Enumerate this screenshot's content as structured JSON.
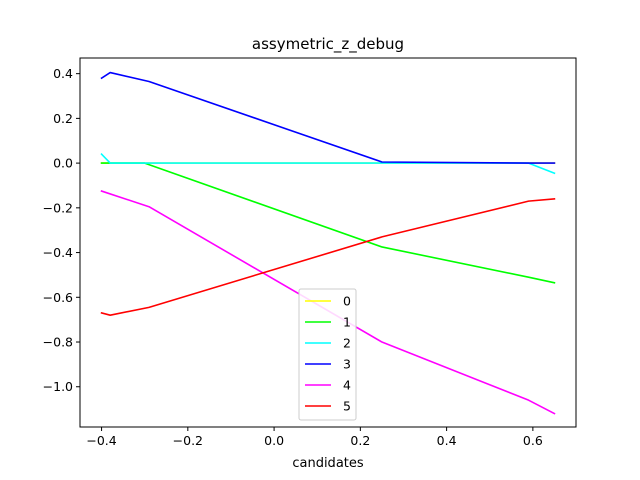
{
  "chart_data": {
    "type": "line",
    "title": "assymetric_z_debug",
    "xlabel": "candidates",
    "ylabel": "",
    "xlim": [
      -0.45,
      0.7
    ],
    "ylim": [
      -1.18,
      0.47
    ],
    "xticks": [
      -0.4,
      -0.2,
      0.0,
      0.2,
      0.4,
      0.6
    ],
    "xtick_labels": [
      "−0.4",
      "−0.2",
      "0.0",
      "0.2",
      "0.4",
      "0.6"
    ],
    "yticks": [
      0.4,
      0.2,
      0.0,
      -0.2,
      -0.4,
      -0.6,
      -0.8,
      -1.0
    ],
    "ytick_labels": [
      "0.4",
      "0.2",
      "0.0",
      "−0.2",
      "−0.4",
      "−0.6",
      "−0.8",
      "−1.0"
    ],
    "grid": false,
    "legend_position": "bottom-center",
    "series": [
      {
        "name": "0",
        "color": "#ffff00",
        "x": [
          -0.4,
          -0.3,
          0.25,
          0.59,
          0.65
        ],
        "y": [
          0.0,
          0.0,
          0.0,
          0.0,
          0.0
        ]
      },
      {
        "name": "1",
        "color": "#00ff00",
        "x": [
          -0.4,
          -0.3,
          0.25,
          0.59,
          0.65
        ],
        "y": [
          0.0,
          0.0,
          -0.375,
          -0.51,
          -0.535
        ]
      },
      {
        "name": "2",
        "color": "#00ffff",
        "x": [
          -0.4,
          -0.38,
          0.25,
          0.59,
          0.65
        ],
        "y": [
          0.04,
          0.0,
          0.0,
          0.0,
          -0.045
        ]
      },
      {
        "name": "3",
        "color": "#0000ff",
        "x": [
          -0.4,
          -0.38,
          -0.29,
          0.25,
          0.59,
          0.65
        ],
        "y": [
          0.38,
          0.405,
          0.365,
          0.005,
          0.0,
          0.0
        ]
      },
      {
        "name": "4",
        "color": "#ff00ff",
        "x": [
          -0.4,
          -0.29,
          0.25,
          0.59,
          0.65
        ],
        "y": [
          -0.125,
          -0.195,
          -0.8,
          -1.06,
          -1.12
        ]
      },
      {
        "name": "5",
        "color": "#ff0000",
        "x": [
          -0.4,
          -0.38,
          -0.29,
          0.25,
          0.59,
          0.65
        ],
        "y": [
          -0.67,
          -0.68,
          -0.645,
          -0.33,
          -0.17,
          -0.16
        ]
      }
    ]
  }
}
